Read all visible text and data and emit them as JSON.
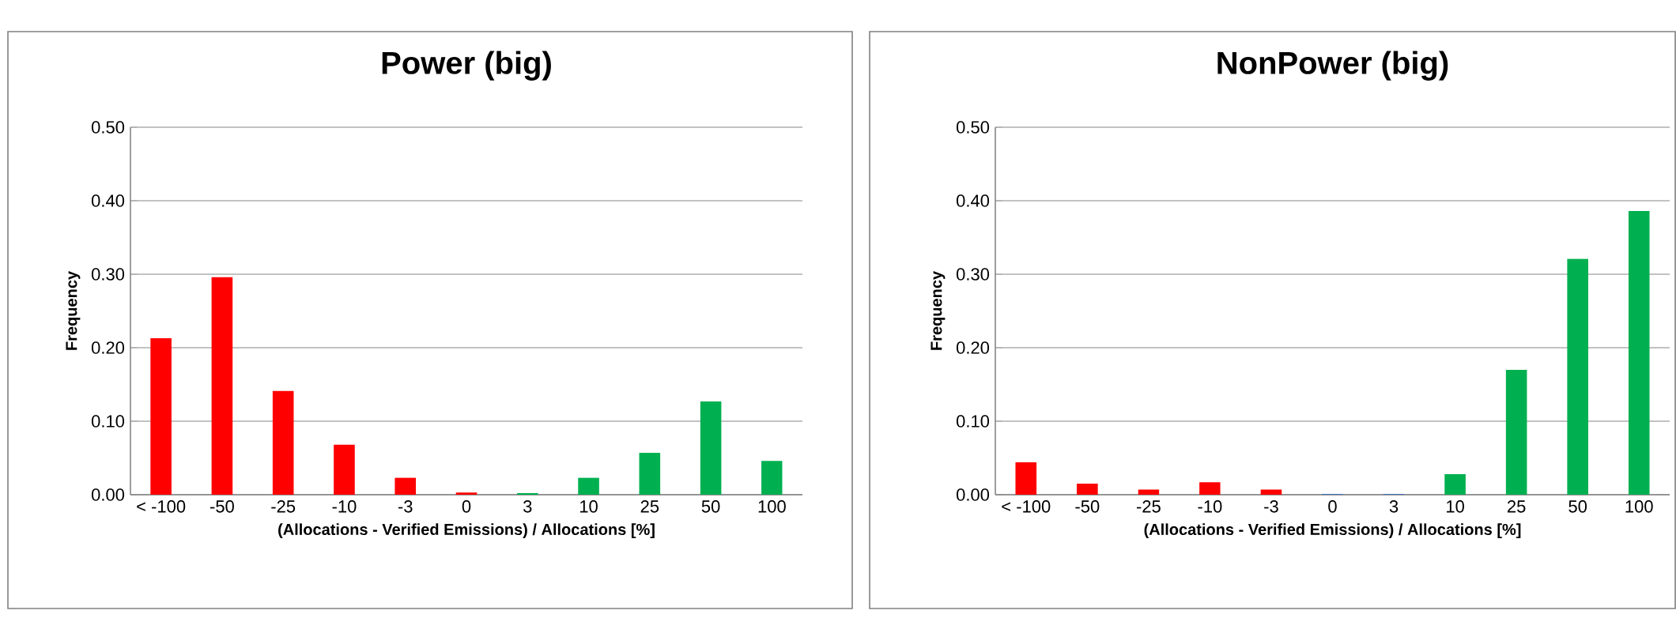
{
  "chart_data": [
    {
      "type": "bar",
      "title": "Power (big)",
      "xlabel": "(Allocations - Verified Emissions) / Allocations [%]",
      "ylabel": "Frequency",
      "categories": [
        "< -100",
        "-50",
        "-25",
        "-10",
        "-3",
        "0",
        "3",
        "10",
        "25",
        "50",
        "100"
      ],
      "values": [
        0.213,
        0.296,
        0.141,
        0.068,
        0.023,
        0.003,
        0.002,
        0.023,
        0.057,
        0.127,
        0.046
      ],
      "colors": [
        "#ff0000",
        "#ff0000",
        "#ff0000",
        "#ff0000",
        "#ff0000",
        "#ff0000",
        "#00b050",
        "#00b050",
        "#00b050",
        "#00b050",
        "#00b050"
      ],
      "ylim": [
        0,
        0.5
      ],
      "yticks": [
        {
          "value": 0,
          "label": "0.00"
        },
        {
          "value": 0.1,
          "label": "0.10"
        },
        {
          "value": 0.2,
          "label": "0.20"
        },
        {
          "value": 0.3,
          "label": "0.30"
        },
        {
          "value": 0.4,
          "label": "0.40"
        },
        {
          "value": 0.5,
          "label": "0.50"
        }
      ],
      "grid": "y"
    },
    {
      "type": "bar",
      "title": "NonPower (big)",
      "xlabel": "(Allocations - Verified Emissions) / Allocations [%]",
      "ylabel": "Frequency",
      "categories": [
        "< -100",
        "-50",
        "-25",
        "-10",
        "-3",
        "0",
        "3",
        "10",
        "25",
        "50",
        "100"
      ],
      "values": [
        0.044,
        0.015,
        0.007,
        0.017,
        0.007,
        0.001,
        0.001,
        0.028,
        0.17,
        0.321,
        0.386
      ],
      "colors": [
        "#ff0000",
        "#ff0000",
        "#ff0000",
        "#ff0000",
        "#ff0000",
        "#4472c4",
        "#4472c4",
        "#00b050",
        "#00b050",
        "#00b050",
        "#00b050"
      ],
      "ylim": [
        0,
        0.5
      ],
      "yticks": [
        {
          "value": 0,
          "label": "0.00"
        },
        {
          "value": 0.1,
          "label": "0.10"
        },
        {
          "value": 0.2,
          "label": "0.20"
        },
        {
          "value": 0.3,
          "label": "0.30"
        },
        {
          "value": 0.4,
          "label": "0.40"
        },
        {
          "value": 0.5,
          "label": "0.50"
        }
      ],
      "grid": "y"
    }
  ]
}
